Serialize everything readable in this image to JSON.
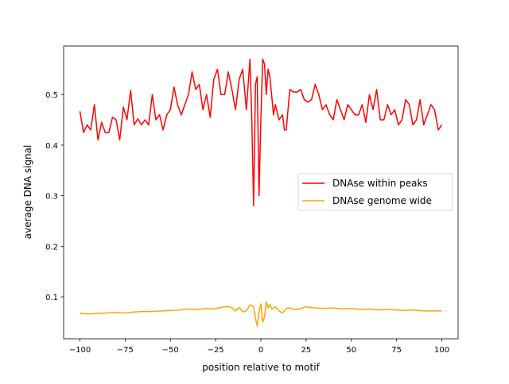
{
  "chart_data": {
    "type": "line",
    "title": "",
    "xlabel": "position relative to motif",
    "ylabel": "average DNA signal",
    "xlim": [
      -109,
      109
    ],
    "ylim": [
      0.017,
      0.596
    ],
    "xticks": [
      -100,
      -75,
      -50,
      -25,
      0,
      25,
      50,
      75,
      100
    ],
    "yticks": [
      0.1,
      0.2,
      0.3,
      0.4,
      0.5
    ],
    "grid": false,
    "legend_position": "center-right",
    "series": [
      {
        "name": "DNAse within peaks",
        "color": "#ff0000",
        "x": [
          -100,
          -98,
          -96,
          -94,
          -92,
          -90,
          -88,
          -86,
          -84,
          -82,
          -80,
          -78,
          -76,
          -74,
          -72,
          -70,
          -68,
          -66,
          -64,
          -62,
          -60,
          -58,
          -56,
          -54,
          -52,
          -50,
          -48,
          -46,
          -44,
          -42,
          -40,
          -38,
          -36,
          -34,
          -32,
          -30,
          -28,
          -26,
          -24,
          -22,
          -20,
          -18,
          -16,
          -14,
          -12,
          -10,
          -8,
          -6,
          -5,
          -4,
          -3,
          -2,
          -1,
          0,
          1,
          2,
          3,
          4,
          5,
          7,
          8,
          10,
          12,
          13,
          14,
          16,
          18,
          20,
          22,
          24,
          26,
          28,
          30,
          32,
          34,
          36,
          38,
          40,
          42,
          44,
          46,
          48,
          50,
          52,
          54,
          56,
          58,
          60,
          62,
          64,
          66,
          68,
          70,
          72,
          74,
          76,
          78,
          80,
          82,
          84,
          86,
          88,
          90,
          92,
          94,
          96,
          98,
          100
        ],
        "values": [
          0.467,
          0.425,
          0.44,
          0.43,
          0.48,
          0.41,
          0.445,
          0.425,
          0.425,
          0.455,
          0.45,
          0.41,
          0.475,
          0.45,
          0.508,
          0.44,
          0.452,
          0.44,
          0.45,
          0.44,
          0.5,
          0.45,
          0.46,
          0.43,
          0.46,
          0.47,
          0.515,
          0.48,
          0.46,
          0.48,
          0.5,
          0.545,
          0.51,
          0.52,
          0.47,
          0.5,
          0.455,
          0.53,
          0.55,
          0.5,
          0.5,
          0.545,
          0.51,
          0.47,
          0.53,
          0.55,
          0.47,
          0.57,
          0.45,
          0.28,
          0.52,
          0.535,
          0.3,
          0.45,
          0.57,
          0.56,
          0.5,
          0.55,
          0.535,
          0.46,
          0.48,
          0.45,
          0.46,
          0.43,
          0.43,
          0.51,
          0.505,
          0.505,
          0.51,
          0.49,
          0.485,
          0.49,
          0.52,
          0.5,
          0.47,
          0.48,
          0.46,
          0.45,
          0.49,
          0.47,
          0.45,
          0.48,
          0.47,
          0.46,
          0.46,
          0.48,
          0.445,
          0.5,
          0.47,
          0.51,
          0.45,
          0.45,
          0.48,
          0.46,
          0.47,
          0.44,
          0.45,
          0.49,
          0.48,
          0.44,
          0.45,
          0.49,
          0.44,
          0.46,
          0.48,
          0.47,
          0.43,
          0.44
        ]
      },
      {
        "name": "DNAse genome wide",
        "color": "#ffa500",
        "x": [
          -100,
          -95,
          -90,
          -85,
          -80,
          -75,
          -70,
          -65,
          -60,
          -55,
          -50,
          -45,
          -40,
          -35,
          -30,
          -25,
          -22,
          -20,
          -18,
          -16,
          -14,
          -12,
          -10,
          -8,
          -6,
          -4,
          -3,
          -2,
          -1,
          0,
          1,
          2,
          3,
          4,
          5,
          6,
          8,
          10,
          12,
          14,
          16,
          18,
          20,
          25,
          30,
          35,
          40,
          45,
          50,
          55,
          60,
          65,
          70,
          75,
          80,
          85,
          90,
          95,
          100
        ],
        "values": [
          0.067,
          0.066,
          0.067,
          0.068,
          0.069,
          0.068,
          0.07,
          0.071,
          0.071,
          0.072,
          0.073,
          0.074,
          0.076,
          0.075,
          0.077,
          0.076,
          0.079,
          0.08,
          0.081,
          0.078,
          0.072,
          0.079,
          0.07,
          0.072,
          0.084,
          0.08,
          0.058,
          0.042,
          0.07,
          0.086,
          0.05,
          0.06,
          0.09,
          0.078,
          0.085,
          0.076,
          0.08,
          0.072,
          0.068,
          0.077,
          0.078,
          0.075,
          0.075,
          0.08,
          0.078,
          0.077,
          0.078,
          0.076,
          0.077,
          0.075,
          0.076,
          0.074,
          0.075,
          0.074,
          0.073,
          0.074,
          0.072,
          0.072,
          0.072
        ]
      }
    ]
  }
}
